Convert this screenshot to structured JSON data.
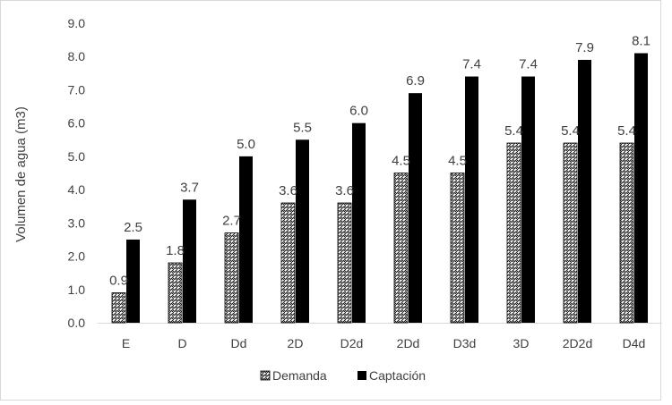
{
  "chart_data": {
    "type": "bar",
    "title": "",
    "xlabel": "",
    "ylabel": "Volumen de agua (m3)",
    "categories": [
      "E",
      "D",
      "Dd",
      "2D",
      "D2d",
      "2Dd",
      "D3d",
      "3D",
      "2D2d",
      "D4d"
    ],
    "series": [
      {
        "name": "Demanda",
        "values": [
          0.9,
          1.8,
          2.7,
          3.6,
          3.6,
          4.5,
          4.5,
          5.4,
          5.4,
          5.4
        ],
        "labels": [
          "0.9",
          "1.8",
          "2.7",
          "3.6",
          "3.6",
          "4.5",
          "4.5",
          "5.4",
          "5.4",
          "5.4"
        ],
        "fill": "pattern",
        "color": "#000000"
      },
      {
        "name": "Captación",
        "values": [
          2.5,
          3.7,
          5.0,
          5.5,
          6.0,
          6.9,
          7.4,
          7.4,
          7.9,
          8.1
        ],
        "labels": [
          "2.5",
          "3.7",
          "5.0",
          "5.5",
          "6.0",
          "6.9",
          "7.4",
          "7.4",
          "7.9",
          "8.1"
        ],
        "fill": "solid",
        "color": "#000000"
      }
    ],
    "ylim": [
      0,
      9
    ],
    "yticks": [
      "0.0",
      "1.0",
      "2.0",
      "3.0",
      "4.0",
      "5.0",
      "6.0",
      "7.0",
      "8.0",
      "9.0"
    ],
    "grid": false,
    "legend_position": "bottom"
  }
}
